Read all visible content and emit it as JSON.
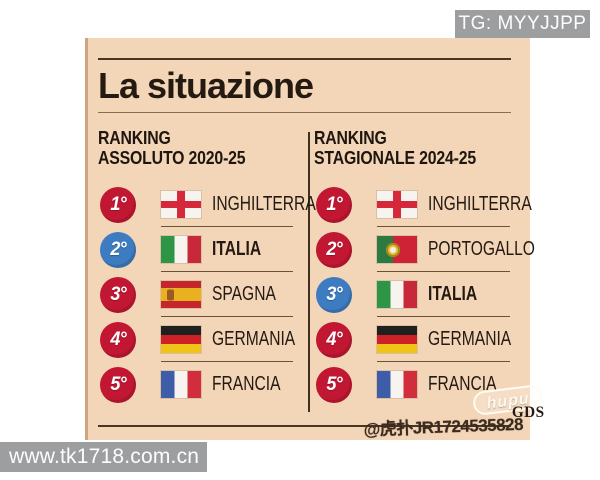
{
  "watermarks": {
    "top_right": "TG: MYYJJPP",
    "bottom_left": "www.tk1718.com.cn",
    "hupu_logo": "hupu",
    "gds": "GDS",
    "bottom_right_id": "@虎扑JR1724535828"
  },
  "panel": {
    "title": "La situazione",
    "columns": [
      {
        "header_line1": "RANKING",
        "header_line2": "ASSOLUTO 2020-25",
        "rows": [
          {
            "rank": "1°",
            "country": "INGHILTERRA",
            "flag": "england",
            "highlight": false
          },
          {
            "rank": "2°",
            "country": "ITALIA",
            "flag": "italy",
            "highlight": true
          },
          {
            "rank": "3°",
            "country": "SPAGNA",
            "flag": "spain",
            "highlight": false
          },
          {
            "rank": "4°",
            "country": "GERMANIA",
            "flag": "germany",
            "highlight": false
          },
          {
            "rank": "5°",
            "country": "FRANCIA",
            "flag": "france",
            "highlight": false
          }
        ]
      },
      {
        "header_line1": "RANKING",
        "header_line2": "STAGIONALE 2024-25",
        "rows": [
          {
            "rank": "1°",
            "country": "INGHILTERRA",
            "flag": "england",
            "highlight": false
          },
          {
            "rank": "2°",
            "country": "PORTOGALLO",
            "flag": "portugal",
            "highlight": false
          },
          {
            "rank": "3°",
            "country": "ITALIA",
            "flag": "italy",
            "highlight": true
          },
          {
            "rank": "4°",
            "country": "GERMANIA",
            "flag": "germany",
            "highlight": false
          },
          {
            "rank": "5°",
            "country": "FRANCIA",
            "flag": "france",
            "highlight": false
          }
        ]
      }
    ]
  },
  "colors": {
    "panel_bg": "#f3d5b8",
    "accent_red": "#c21733",
    "accent_blue": "#3d7cc1",
    "text_dark": "#241a12",
    "rule_dark": "#4a3423",
    "watermark_gray": "#9d9ea0"
  },
  "chart_data": [
    {
      "type": "table",
      "title": "RANKING ASSOLUTO 2020-25",
      "columns": [
        "rank",
        "country"
      ],
      "rows": [
        [
          "1°",
          "INGHILTERRA"
        ],
        [
          "2°",
          "ITALIA"
        ],
        [
          "3°",
          "SPAGNA"
        ],
        [
          "4°",
          "GERMANIA"
        ],
        [
          "5°",
          "FRANCIA"
        ]
      ],
      "highlighted_row": "ITALIA"
    },
    {
      "type": "table",
      "title": "RANKING STAGIONALE 2024-25",
      "columns": [
        "rank",
        "country"
      ],
      "rows": [
        [
          "1°",
          "INGHILTERRA"
        ],
        [
          "2°",
          "PORTOGALLO"
        ],
        [
          "3°",
          "ITALIA"
        ],
        [
          "4°",
          "GERMANIA"
        ],
        [
          "5°",
          "FRANCIA"
        ]
      ],
      "highlighted_row": "ITALIA"
    }
  ]
}
